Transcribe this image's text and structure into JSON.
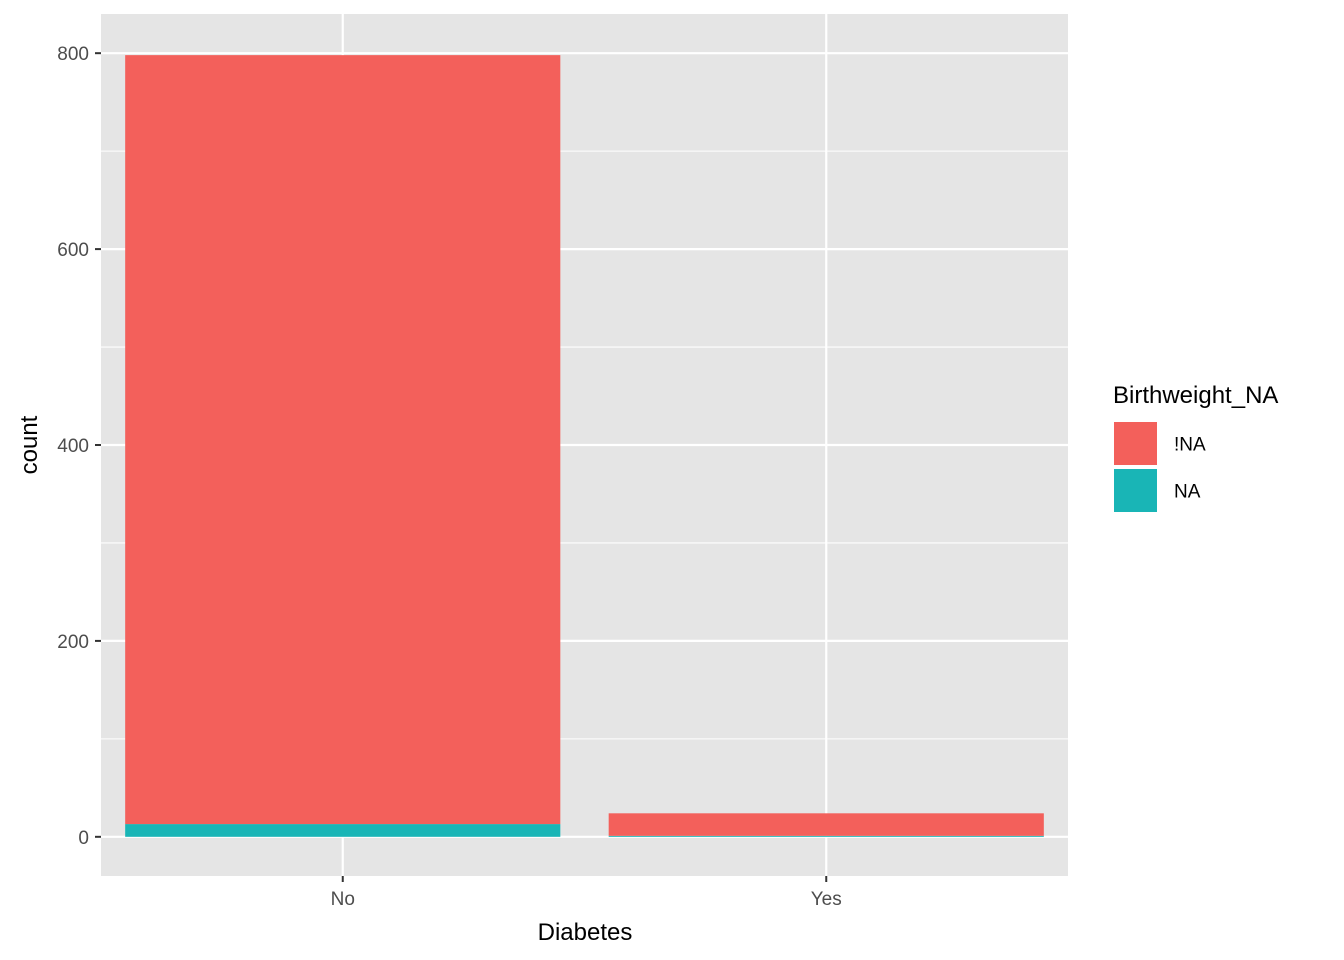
{
  "chart_data": {
    "type": "bar",
    "stacked": true,
    "xlabel": "Diabetes",
    "ylabel": "count",
    "categories": [
      "No",
      "Yes"
    ],
    "series": [
      {
        "name": "NA",
        "values": [
          13,
          1
        ],
        "color": "#19B5B6"
      },
      {
        "name": "!NA",
        "values": [
          785,
          23
        ],
        "color": "#F3605B"
      }
    ],
    "ylim": [
      -40,
      840
    ],
    "yticks": [
      0,
      200,
      400,
      600,
      800
    ],
    "grid": true,
    "legend": {
      "title": "Birthweight_NA",
      "placement": "right",
      "items": [
        {
          "label": "!NA",
          "color": "#F3605B"
        },
        {
          "label": "NA",
          "color": "#19B5B6"
        }
      ]
    },
    "colors": {
      "panel": "#E5E5E5",
      "gridline": "#FFFFFF"
    }
  }
}
